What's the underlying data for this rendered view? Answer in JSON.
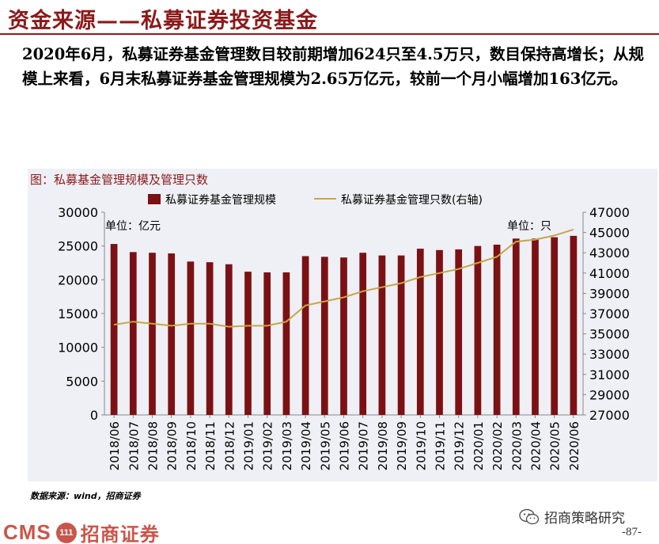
{
  "page": {
    "title": "资金来源——私募证券投资基金",
    "summary": "2020年6月，私募证券基金管理数目较前期增加624只至4.5万只，数目保持高增长；从规模上来看，6月末私募证券基金管理规模为2.65万亿元，较前一个月小幅增加163亿元。",
    "source_note": "数据来源：wind，招商证券",
    "page_number": "-87-"
  },
  "footer": {
    "logo_text": "CMS",
    "logo_emblem": "111",
    "company_name": "招商证券",
    "wechat_name": "招商策略研究",
    "wechat_icon": "wechat-icon"
  },
  "chart_data": {
    "type": "bar",
    "title": "图：私募基金管理规模及管理只数",
    "left_unit": "单位：亿元",
    "right_unit": "单位：只",
    "legend_position": "top",
    "grid": false,
    "categories": [
      "2018/06",
      "2018/07",
      "2018/08",
      "2018/09",
      "2018/10",
      "2018/11",
      "2018/12",
      "2019/01",
      "2019/02",
      "2019/03",
      "2019/04",
      "2019/05",
      "2019/06",
      "2019/07",
      "2019/08",
      "2019/09",
      "2019/10",
      "2019/11",
      "2019/12",
      "2020/01",
      "2020/02",
      "2020/03",
      "2020/04",
      "2020/05",
      "2020/06"
    ],
    "ylim": [
      0,
      30000
    ],
    "yticks": [
      0,
      5000,
      10000,
      15000,
      20000,
      25000,
      30000
    ],
    "y2lim": [
      27000,
      47000
    ],
    "y2ticks": [
      27000,
      29000,
      31000,
      33000,
      35000,
      37000,
      39000,
      41000,
      43000,
      45000,
      47000
    ],
    "series": [
      {
        "name": "私募证券基金管理规模",
        "type": "bar",
        "axis": "left",
        "color": "#7b1113",
        "values": [
          25300,
          24100,
          24000,
          23900,
          22700,
          22600,
          22300,
          21200,
          21100,
          21100,
          23500,
          23400,
          23300,
          24000,
          23600,
          23600,
          24600,
          24400,
          24500,
          25000,
          25200,
          26100,
          26100,
          26300,
          26500
        ]
      },
      {
        "name": "私募证券基金管理只数(右轴)",
        "type": "line",
        "axis": "right",
        "color": "#c9a449",
        "values": [
          35900,
          36200,
          36000,
          35800,
          36000,
          36000,
          35700,
          35800,
          35800,
          36200,
          37800,
          38200,
          38600,
          39200,
          39600,
          40000,
          40600,
          41000,
          41400,
          42000,
          42600,
          44100,
          44300,
          44700,
          45300
        ]
      }
    ]
  }
}
